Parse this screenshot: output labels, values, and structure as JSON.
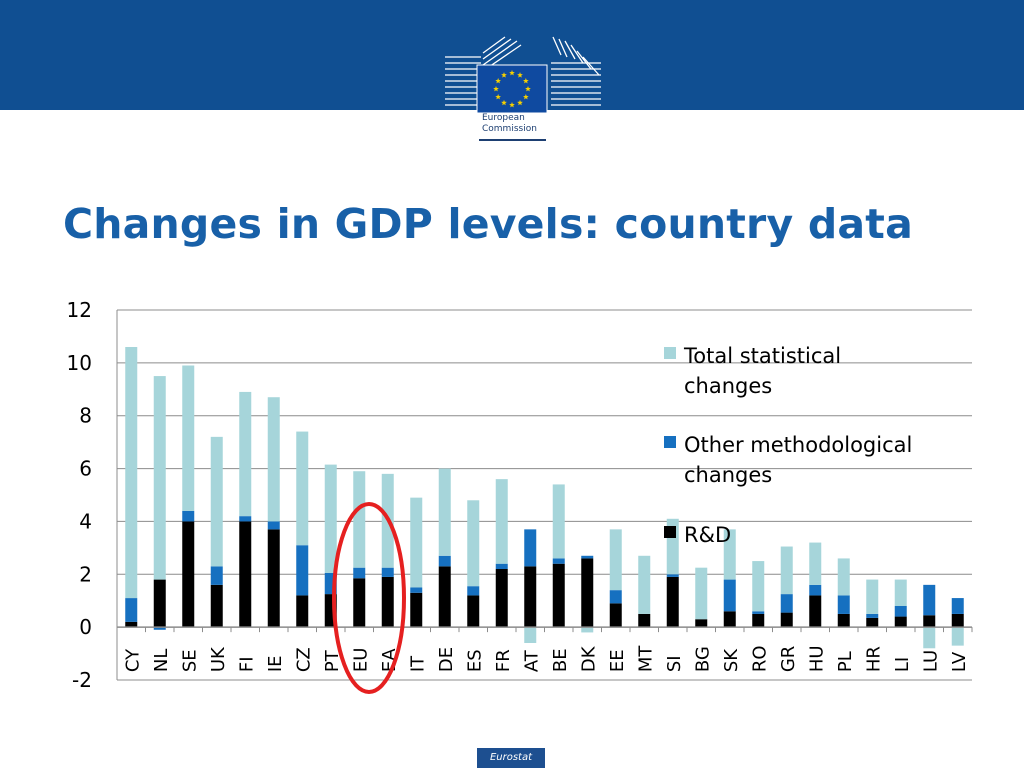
{
  "header": {
    "org_line1": "European",
    "org_line2": "Commission"
  },
  "title": "Changes in GDP levels: country data",
  "footer": {
    "badge": "Eurostat"
  },
  "colors": {
    "band": "#104f92",
    "title": "#1860a8",
    "total_statistical": "#a6d5da",
    "other_methodological": "#1670c0",
    "rd": "#000000",
    "highlight": "#e52020"
  },
  "chart_data": {
    "type": "bar",
    "stacked": true,
    "ylim": [
      -2,
      12
    ],
    "yticks": [
      -2,
      0,
      2,
      4,
      6,
      8,
      10,
      12
    ],
    "grid": true,
    "legend_position": "right",
    "highlighted_categories": [
      "EU",
      "EA"
    ],
    "categories": [
      "CY",
      "NL",
      "SE",
      "UK",
      "FI",
      "IE",
      "CZ",
      "PT",
      "EU",
      "EA",
      "IT",
      "DE",
      "ES",
      "FR",
      "AT",
      "BE",
      "DK",
      "EE",
      "MT",
      "SI",
      "BG",
      "SK",
      "RO",
      "GR",
      "HU",
      "PL",
      "HR",
      "LI",
      "LU",
      "LV"
    ],
    "series": [
      {
        "name": "Total statistical changes",
        "color": "#a6d5da",
        "values": [
          9.5,
          7.7,
          5.5,
          4.9,
          4.7,
          4.7,
          4.3,
          4.1,
          3.65,
          3.55,
          3.4,
          3.3,
          3.25,
          3.2,
          -0.6,
          2.8,
          -0.2,
          2.3,
          2.2,
          2.1,
          1.95,
          1.9,
          1.9,
          1.8,
          1.6,
          1.4,
          1.3,
          1.0,
          -0.8,
          -0.7
        ]
      },
      {
        "name": "Other methodological changes",
        "color": "#1670c0",
        "values": [
          0.9,
          -0.1,
          0.4,
          0.7,
          0.2,
          0.3,
          1.9,
          0.8,
          0.4,
          0.35,
          0.2,
          0.4,
          0.35,
          0.2,
          1.4,
          0.2,
          0.1,
          0.5,
          0.0,
          0.1,
          0.0,
          1.2,
          0.1,
          0.7,
          0.4,
          0.7,
          0.15,
          0.4,
          1.15,
          0.6
        ]
      },
      {
        "name": "R&D",
        "color": "#000000",
        "values": [
          0.2,
          1.8,
          4.0,
          1.6,
          4.0,
          3.7,
          1.2,
          1.25,
          1.85,
          1.9,
          1.3,
          2.3,
          1.2,
          2.2,
          2.3,
          2.4,
          2.6,
          0.9,
          0.5,
          1.9,
          0.3,
          0.6,
          0.5,
          0.55,
          1.2,
          0.5,
          0.35,
          0.4,
          0.45,
          0.5
        ]
      }
    ]
  }
}
